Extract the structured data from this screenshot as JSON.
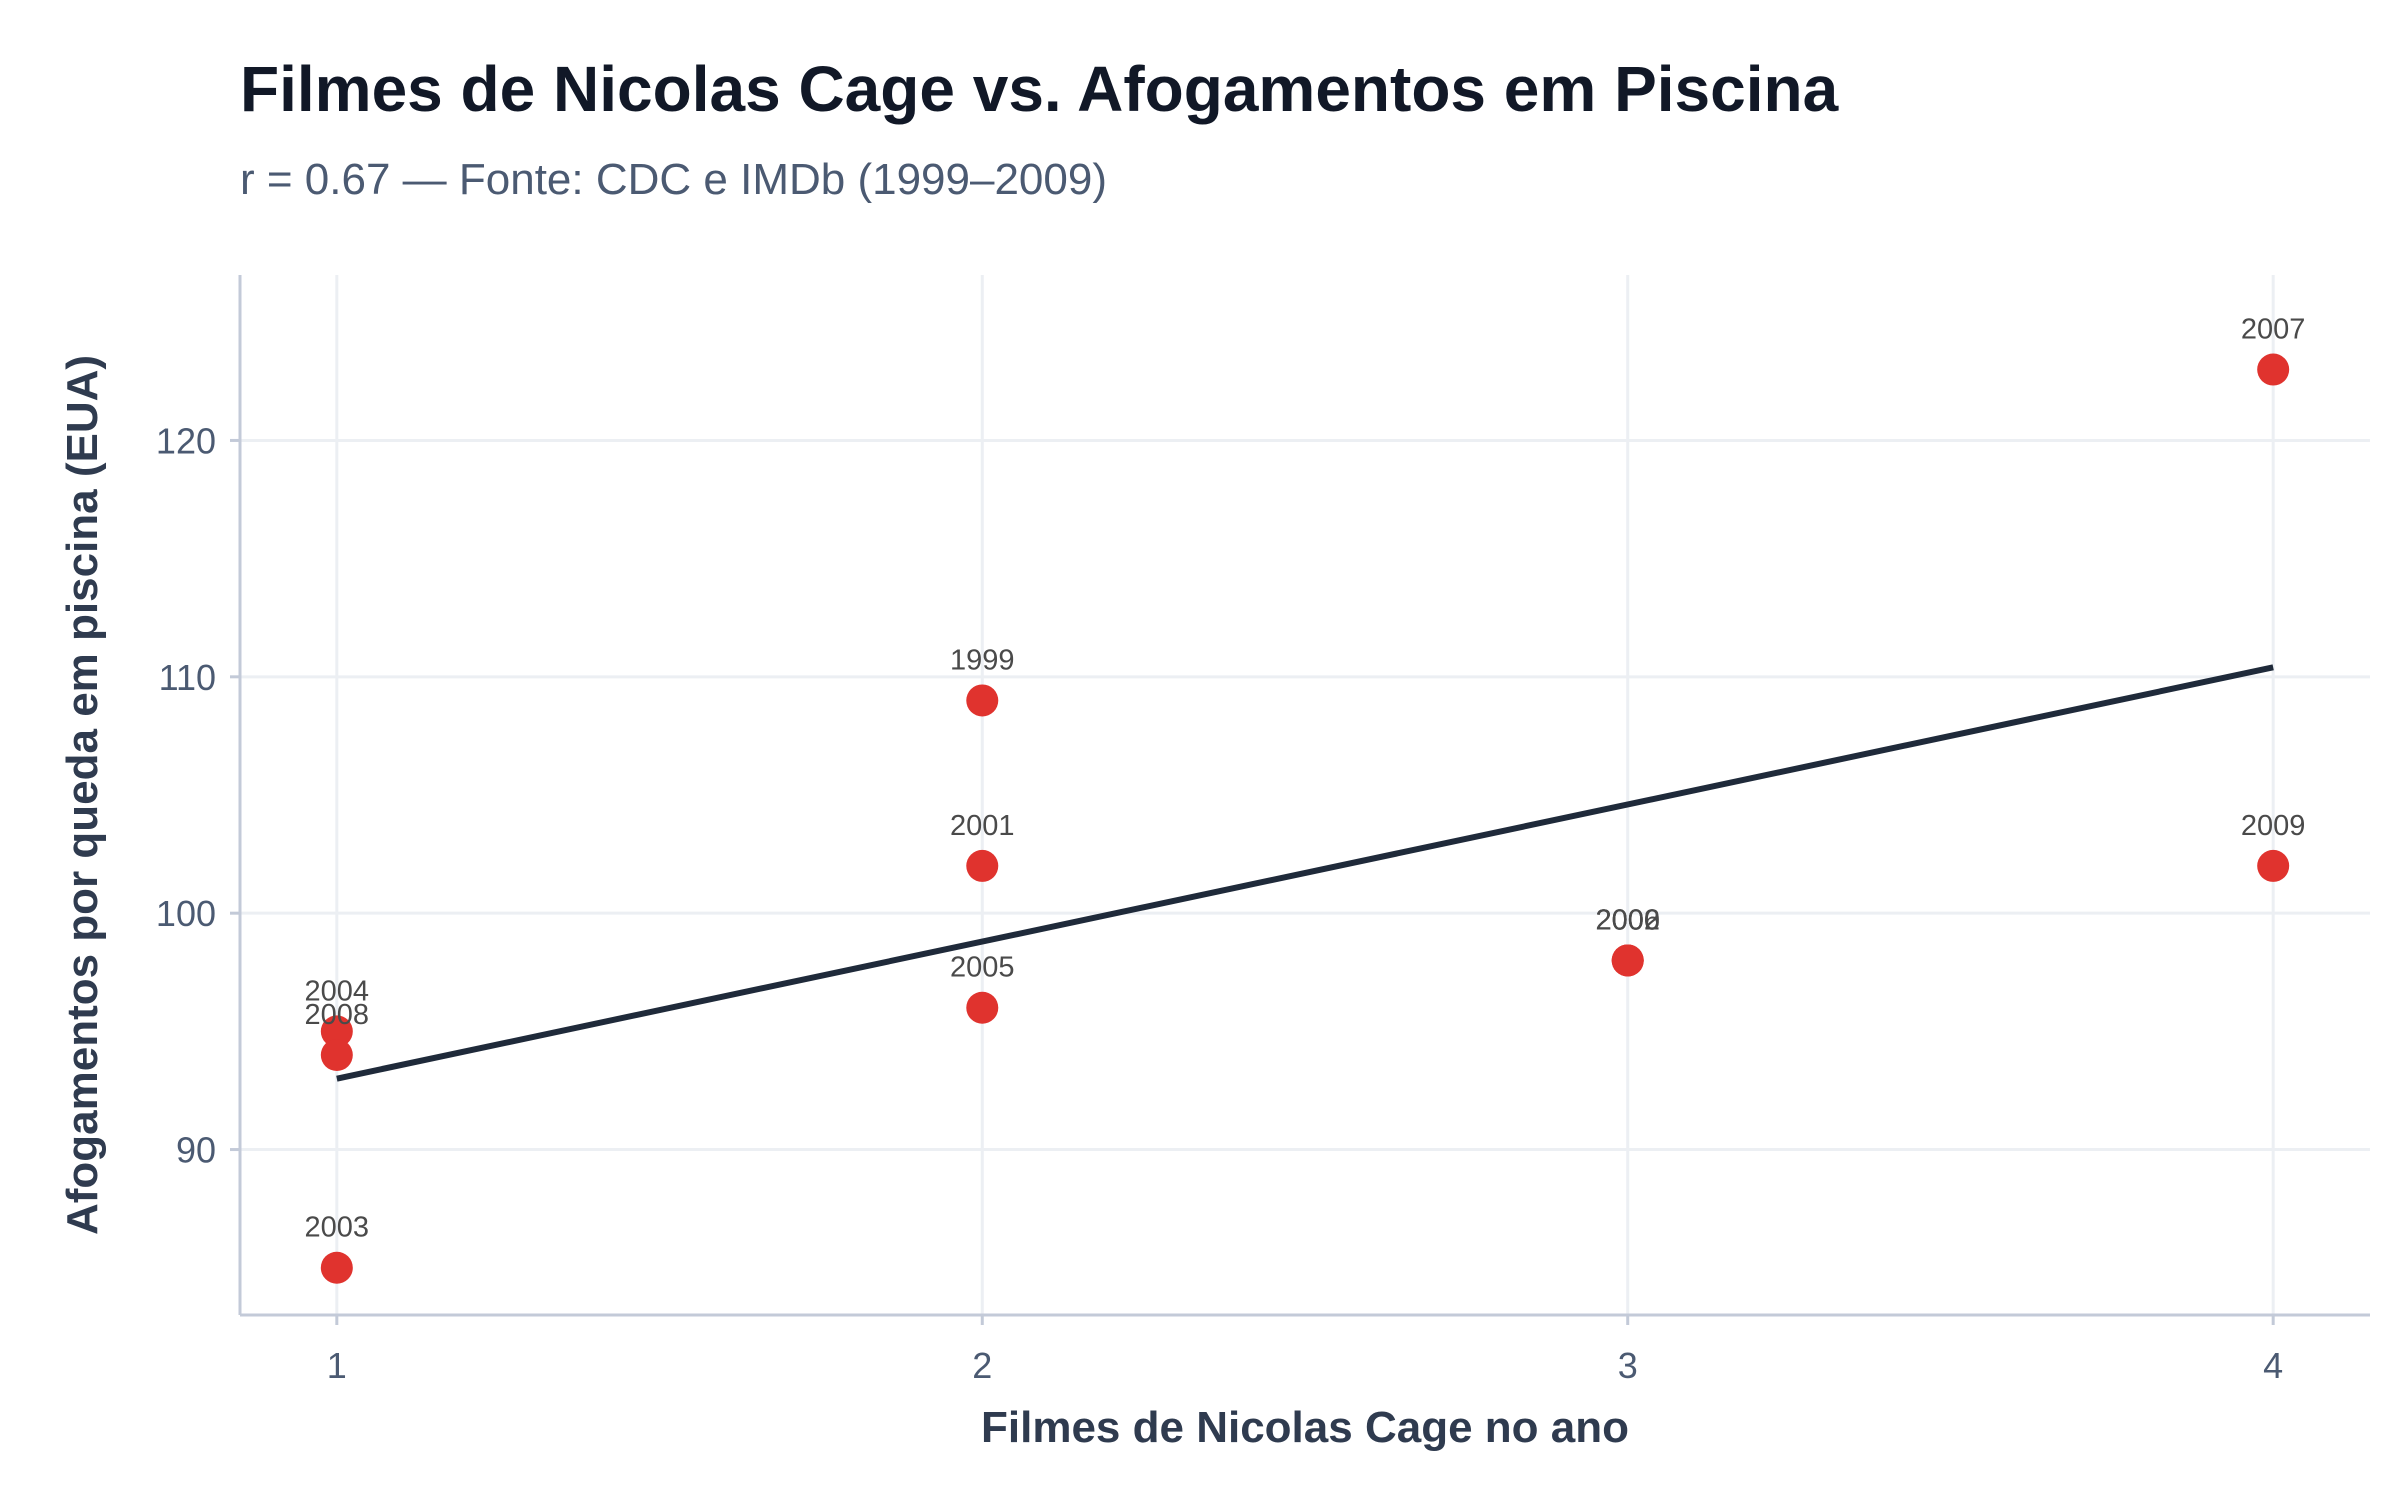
{
  "chart_data": {
    "type": "scatter",
    "title": "Filmes de Nicolas Cage vs. Afogamentos em Piscina",
    "subtitle": "r = 0.67 — Fonte: CDC e IMDb (1999–2009)",
    "xlabel": "Filmes de Nicolas Cage no ano",
    "ylabel": "Afogamentos por queda em piscina (EUA)",
    "xlim": [
      0.85,
      4.15
    ],
    "ylim": [
      83,
      127
    ],
    "xticks": [
      1,
      2,
      3,
      4
    ],
    "yticks": [
      90,
      100,
      110,
      120
    ],
    "grid": true,
    "points": [
      {
        "year": "1999",
        "x": 2,
        "y": 109
      },
      {
        "year": "2000",
        "x": 3,
        "y": 98
      },
      {
        "year": "2001",
        "x": 2,
        "y": 102
      },
      {
        "year": "2002",
        "x": 3,
        "y": 98
      },
      {
        "year": "2003",
        "x": 1,
        "y": 85
      },
      {
        "year": "2004",
        "x": 1,
        "y": 95
      },
      {
        "year": "2005",
        "x": 2,
        "y": 96
      },
      {
        "year": "2006",
        "x": 3,
        "y": 98
      },
      {
        "year": "2007",
        "x": 4,
        "y": 123
      },
      {
        "year": "2008",
        "x": 1,
        "y": 94
      },
      {
        "year": "2009",
        "x": 4,
        "y": 102
      }
    ],
    "trendline": {
      "x": [
        1,
        4
      ],
      "y": [
        93,
        110.4
      ]
    },
    "colors": {
      "point": "#e0332e",
      "trendline": "#1f2a3a",
      "grid": "#eceff3",
      "axis": "#c3cad8"
    }
  }
}
